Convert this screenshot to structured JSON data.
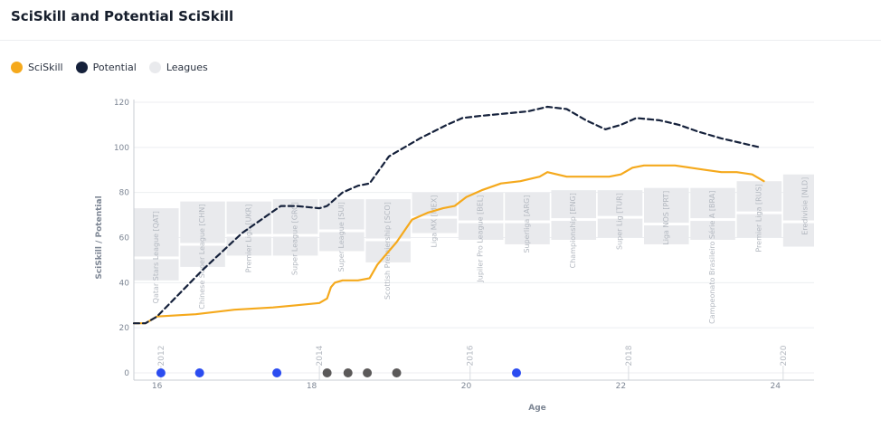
{
  "header": {
    "title": "SciSkill and Potential SciSkill"
  },
  "legend": [
    {
      "label": "SciSkill",
      "color": "#f5a91c"
    },
    {
      "label": "Potential",
      "color": "#15213b"
    },
    {
      "label": "Leagues",
      "color": "#e9eaed"
    }
  ],
  "chart_data": {
    "type": "line",
    "title": "SciSkill and Potential SciSkill",
    "xlabel": "Age",
    "ylabel": "SciSkill / Potential",
    "xlim": [
      15.7,
      24.5
    ],
    "ylim": [
      0,
      120
    ],
    "x_ticks": [
      16,
      18,
      20,
      22,
      24
    ],
    "y_ticks": [
      0,
      20,
      40,
      60,
      80,
      100,
      120
    ],
    "year_markers": [
      {
        "label": "2012",
        "age": 16.05
      },
      {
        "label": "2014",
        "age": 18.1
      },
      {
        "label": "2016",
        "age": 20.05
      },
      {
        "label": "2018",
        "age": 22.1
      },
      {
        "label": "2020",
        "age": 24.1
      }
    ],
    "leagues": [
      {
        "name": "Qatar Stars League [QAT]",
        "x0": 15.7,
        "x1": 16.28,
        "low": 41,
        "mid": 51,
        "high": 73
      },
      {
        "name": "Chinese Super League [CHN]",
        "x0": 16.3,
        "x1": 16.88,
        "low": 47,
        "mid": 57,
        "high": 76
      },
      {
        "name": "Premier Liga [UKR]",
        "x0": 16.9,
        "x1": 17.48,
        "low": 52,
        "mid": 61,
        "high": 76
      },
      {
        "name": "Super League [GRC]",
        "x0": 17.5,
        "x1": 18.08,
        "low": 52,
        "mid": 61,
        "high": 77
      },
      {
        "name": "Super League [SUI]",
        "x0": 18.1,
        "x1": 18.68,
        "low": 54,
        "mid": 63,
        "high": 77
      },
      {
        "name": "Scottish Premiership [SCO]",
        "x0": 18.7,
        "x1": 19.28,
        "low": 49,
        "mid": 59,
        "high": 77
      },
      {
        "name": "Liga MX [MEX]",
        "x0": 19.3,
        "x1": 19.88,
        "low": 62,
        "mid": 69,
        "high": 80
      },
      {
        "name": "Jupiler Pro League [BEL]",
        "x0": 19.9,
        "x1": 20.48,
        "low": 59,
        "mid": 67,
        "high": 80
      },
      {
        "name": "Superliga [ARG]",
        "x0": 20.5,
        "x1": 21.08,
        "low": 57,
        "mid": 67,
        "high": 80
      },
      {
        "name": "Championship [ENG]",
        "x0": 21.1,
        "x1": 21.68,
        "low": 59,
        "mid": 68,
        "high": 81
      },
      {
        "name": "Super Lig [TUR]",
        "x0": 21.7,
        "x1": 22.28,
        "low": 60,
        "mid": 69,
        "high": 81
      },
      {
        "name": "Liga NOS [PRT]",
        "x0": 22.3,
        "x1": 22.88,
        "low": 57,
        "mid": 66,
        "high": 82
      },
      {
        "name": "Campeonato Brasileiro Série A [BRA]",
        "x0": 22.9,
        "x1": 23.48,
        "low": 59,
        "mid": 68,
        "high": 82
      },
      {
        "name": "Premier Liga [RUS]",
        "x0": 23.5,
        "x1": 24.08,
        "low": 60,
        "mid": 71,
        "high": 85
      },
      {
        "name": "Eredivisie [NLD]",
        "x0": 24.1,
        "x1": 24.68,
        "low": 56,
        "mid": 67,
        "high": 88
      }
    ],
    "series": [
      {
        "name": "SciSkill",
        "color": "#f5a91c",
        "x": [
          15.7,
          15.85,
          16.0,
          16.5,
          17.0,
          17.5,
          17.8,
          18.1,
          18.2,
          18.25,
          18.3,
          18.4,
          18.6,
          18.75,
          18.85,
          18.95,
          19.1,
          19.3,
          19.5,
          19.7,
          19.85,
          20.0,
          20.2,
          20.45,
          20.7,
          20.95,
          21.05,
          21.3,
          21.6,
          21.85,
          22.0,
          22.15,
          22.3,
          22.5,
          22.7,
          22.9,
          23.1,
          23.3,
          23.5,
          23.7,
          23.85
        ],
        "y": [
          22,
          22,
          25,
          26,
          28,
          29,
          30,
          31,
          33,
          38,
          40,
          41,
          41,
          42,
          48,
          52,
          58,
          68,
          71,
          73,
          74,
          78,
          81,
          84,
          85,
          87,
          89,
          87,
          87,
          87,
          88,
          91,
          92,
          92,
          92,
          91,
          90,
          89,
          89,
          88,
          85
        ]
      },
      {
        "name": "Potential",
        "color": "#15213b",
        "x": [
          15.7,
          15.85,
          16.0,
          16.6,
          17.1,
          17.6,
          17.8,
          18.1,
          18.2,
          18.4,
          18.6,
          18.75,
          19.0,
          19.4,
          19.75,
          19.95,
          20.2,
          20.5,
          20.8,
          21.05,
          21.3,
          21.55,
          21.8,
          22.0,
          22.2,
          22.5,
          22.75,
          23.0,
          23.3,
          23.55,
          23.8
        ],
        "y": [
          22,
          22,
          25,
          46,
          62,
          74,
          74,
          73,
          74,
          80,
          83,
          84,
          96,
          104,
          110,
          113,
          114,
          115,
          116,
          118,
          117,
          112,
          108,
          110,
          113,
          112,
          110,
          107,
          104,
          102,
          100
        ]
      }
    ],
    "events": [
      {
        "age": 16.05,
        "color": "#2b4cf0"
      },
      {
        "age": 16.55,
        "color": "#2b4cf0"
      },
      {
        "age": 17.55,
        "color": "#2b4cf0"
      },
      {
        "age": 18.2,
        "color": "#5b5959"
      },
      {
        "age": 18.47,
        "color": "#5b5959"
      },
      {
        "age": 18.72,
        "color": "#5b5959"
      },
      {
        "age": 19.1,
        "color": "#5b5959"
      },
      {
        "age": 20.65,
        "color": "#2b4cf0"
      }
    ]
  }
}
